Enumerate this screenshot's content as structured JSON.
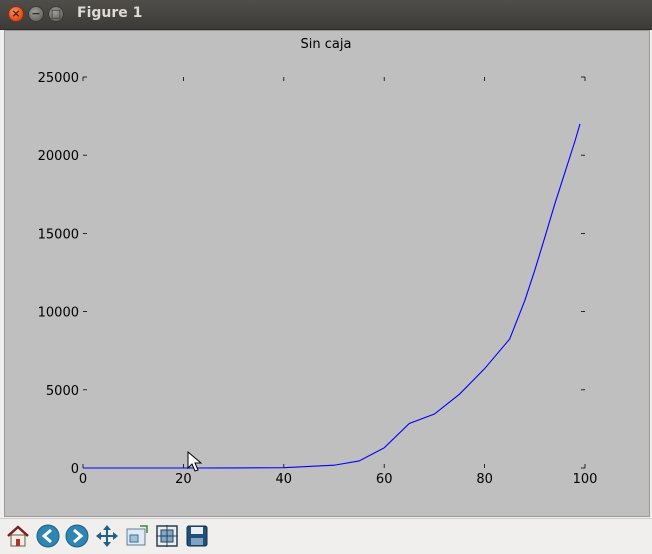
{
  "window": {
    "title": "Figure 1",
    "close_glyph": "×",
    "minimize_glyph": "−",
    "maximize_glyph": "□"
  },
  "toolbar": {
    "buttons": [
      {
        "name": "home-button",
        "icon": "home-icon"
      },
      {
        "name": "back-button",
        "icon": "arrow-left-icon"
      },
      {
        "name": "forward-button",
        "icon": "arrow-right-icon"
      },
      {
        "name": "pan-button",
        "icon": "move-icon"
      },
      {
        "name": "zoom-button",
        "icon": "zoom-rect-icon"
      },
      {
        "name": "subplots-button",
        "icon": "subplots-icon"
      },
      {
        "name": "save-button",
        "icon": "save-icon"
      }
    ]
  },
  "chart_data": {
    "type": "line",
    "title": "Sin caja",
    "xlabel": "",
    "ylabel": "",
    "xlim": [
      0,
      100
    ],
    "ylim": [
      0,
      25000
    ],
    "xticks": [
      0,
      20,
      40,
      60,
      80,
      100
    ],
    "yticks": [
      0,
      5000,
      10000,
      15000,
      20000,
      25000
    ],
    "grid": false,
    "frame": false,
    "series": [
      {
        "color": "#0000ff",
        "x": [
          0,
          10,
          20,
          30,
          40,
          50,
          55,
          60,
          65,
          70,
          75,
          80,
          85,
          88,
          90,
          92,
          94,
          96,
          98,
          99
        ],
        "y": [
          0.0,
          0.0,
          0.3,
          2.5,
          21,
          177,
          450,
          1290,
          2850,
          3450,
          4720,
          6350,
          8250,
          10700,
          12650,
          14750,
          16900,
          18900,
          20900,
          22000
        ]
      }
    ],
    "colors": {
      "background": "#bfbfbf",
      "text": "#000000"
    }
  }
}
